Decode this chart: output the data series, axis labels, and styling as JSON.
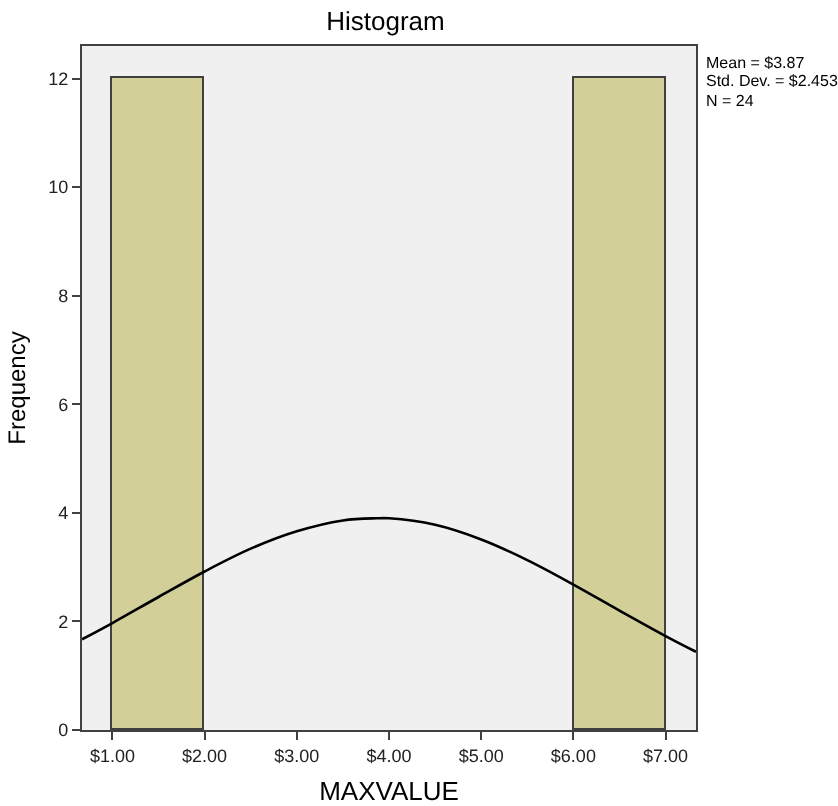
{
  "chart_data": {
    "type": "histogram",
    "title": "Histogram",
    "xlabel": "MAXVALUE",
    "ylabel": "Frequency",
    "bins": [
      1,
      2,
      3,
      4,
      5,
      6,
      7
    ],
    "values": [
      12,
      0,
      0,
      0,
      0,
      12
    ],
    "color": "#d3cf98",
    "series": [
      {
        "type": "line",
        "color": "#000000",
        "x": [
          0.67,
          1,
          1.5,
          2,
          2.5,
          3,
          3.5,
          3.87,
          4,
          4.5,
          5,
          5.5,
          6,
          6.5,
          7,
          7.33
        ],
        "values": [
          1.67,
          1.97,
          2.45,
          2.92,
          3.34,
          3.66,
          3.86,
          3.9,
          3.9,
          3.78,
          3.51,
          3.13,
          2.68,
          2.2,
          1.73,
          1.44
        ]
      }
    ],
    "xlim": [
      0.67,
      7.33
    ],
    "ylim": [
      0,
      12.6
    ],
    "xticks": [
      {
        "value": 1,
        "label": "$1.00"
      },
      {
        "value": 2,
        "label": "$2.00"
      },
      {
        "value": 3,
        "label": "$3.00"
      },
      {
        "value": 4,
        "label": "$4.00"
      },
      {
        "value": 5,
        "label": "$5.00"
      },
      {
        "value": 6,
        "label": "$6.00"
      },
      {
        "value": 7,
        "label": "$7.00"
      }
    ],
    "yticks": [
      0,
      2,
      4,
      6,
      8,
      10,
      12
    ],
    "annotations": [
      "Mean = $3.87",
      "Std. Dev. = $2.453",
      "N = 24"
    ],
    "grid": false,
    "marker": "none",
    "line_style": "solid"
  }
}
